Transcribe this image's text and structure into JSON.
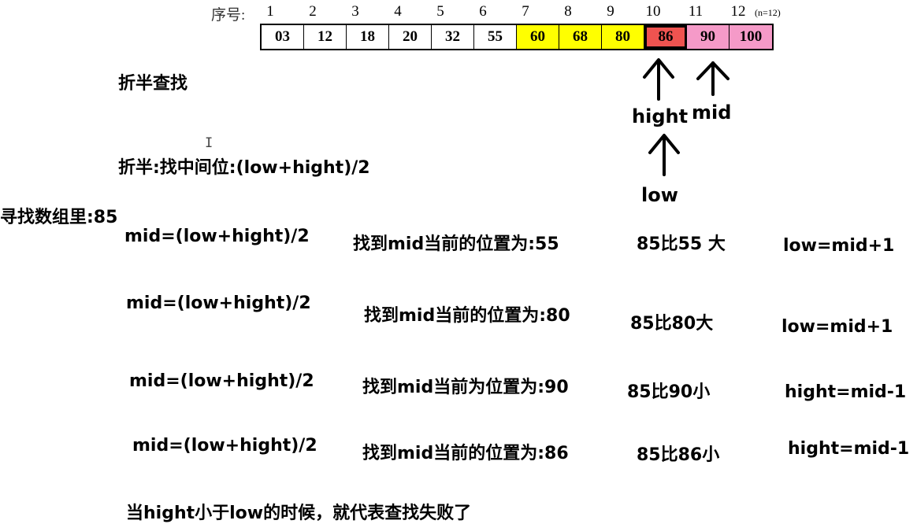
{
  "index_row": {
    "label": "序号:",
    "numbers": [
      "1",
      "2",
      "3",
      "4",
      "5",
      "6",
      "7",
      "8",
      "9",
      "10",
      "11",
      "12"
    ],
    "n_label": "(n=12)"
  },
  "array": {
    "cells": [
      {
        "value": "03",
        "color": "white"
      },
      {
        "value": "12",
        "color": "white"
      },
      {
        "value": "18",
        "color": "white"
      },
      {
        "value": "20",
        "color": "white"
      },
      {
        "value": "32",
        "color": "white"
      },
      {
        "value": "55",
        "color": "white"
      },
      {
        "value": "60",
        "color": "yellow"
      },
      {
        "value": "68",
        "color": "yellow"
      },
      {
        "value": "80",
        "color": "yellow"
      },
      {
        "value": "86",
        "color": "red"
      },
      {
        "value": "90",
        "color": "pink"
      },
      {
        "value": "100",
        "color": "pink"
      }
    ]
  },
  "pointers": {
    "hight": "hight",
    "mid": "mid",
    "low": "low"
  },
  "title": "折半查找",
  "formula": "折半:找中间位:(low+hight)/2",
  "target": "寻找数组里:85",
  "steps": [
    {
      "formula": "mid=(low+hight)/2",
      "found": "找到mid当前的位置为:55",
      "compare": "85比55  大",
      "action": "low=mid+1"
    },
    {
      "formula": "mid=(low+hight)/2",
      "found": "找到mid当前的位置为:80",
      "compare": "85比80大",
      "action": "low=mid+1"
    },
    {
      "formula": "mid=(low+hight)/2",
      "found": "找到mid当前为位置为:90",
      "compare": "85比90小",
      "action": "hight=mid-1"
    },
    {
      "formula": "mid=(low+hight)/2",
      "found": "找到mid当前的位置为:86",
      "compare": "85比86小",
      "action": "hight=mid-1"
    }
  ],
  "conclusion": "当hight小于low的时候，就代表查找失败了",
  "colors": {
    "white": "#ffffff",
    "yellow": "#ffff00",
    "red": "#ef5350",
    "pink": "#f59ac8"
  }
}
